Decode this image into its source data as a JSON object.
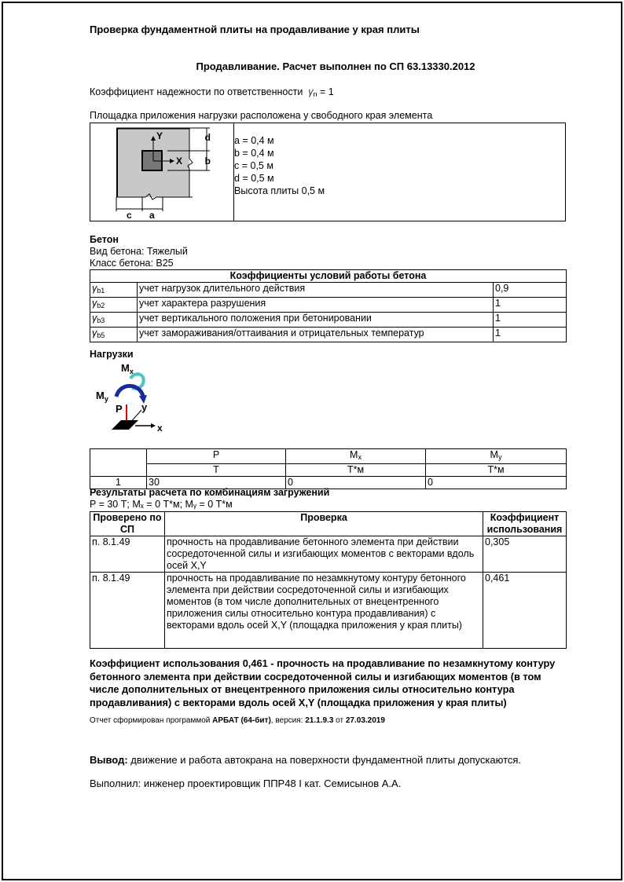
{
  "title": "Проверка фундаментной плиты на продавливание у края плиты",
  "subtitle": "Продавливание. Расчет выполнен по СП 63.13330.2012",
  "reliability": {
    "label": "Коэффициент надежности по ответственности",
    "symbol": "γ",
    "sub": "n",
    "value": "= 1"
  },
  "placement": "Площадка приложения нагрузки расположена у свободного края элемента",
  "diagram": {
    "labels": {
      "y": "Y",
      "x": "X",
      "a": "a",
      "b": "b",
      "c": "c",
      "d": "d"
    },
    "params": [
      "a = 0,4 м",
      "b = 0,4 м",
      "c = 0,5 м",
      "d = 0,5 м",
      "Высота плиты 0,5 м"
    ]
  },
  "concrete": {
    "heading": "Бетон",
    "type": "Вид бетона: Тяжелый",
    "class": "Класс бетона: B25",
    "table_title": "Коэффициенты условий работы бетона",
    "rows": [
      {
        "sym": "γ",
        "sub": "b1",
        "desc": "учет нагрузок длительного действия",
        "val": "0,9"
      },
      {
        "sym": "γ",
        "sub": "b2",
        "desc": "учет характера разрушения",
        "val": "1"
      },
      {
        "sym": "γ",
        "sub": "b3",
        "desc": "учет вертикального положения при бетонировании",
        "val": "1"
      },
      {
        "sym": "γ",
        "sub": "b5",
        "desc": "учет замораживания/оттаивания и отрицательных температур",
        "val": "1"
      }
    ]
  },
  "loads": {
    "heading": "Нагрузки",
    "figure": {
      "mx": "M",
      "mx_sub": "x",
      "my": "M",
      "my_sub": "y",
      "p": "P",
      "y": "y",
      "x": "x"
    },
    "headers": [
      "P",
      "M",
      "M"
    ],
    "header_subs": [
      "",
      "x",
      "y"
    ],
    "units": [
      "Т",
      "Т*м",
      "Т*м"
    ],
    "rows": [
      {
        "n": "1",
        "p": "30",
        "mx": "0",
        "my": "0"
      }
    ]
  },
  "results": {
    "heading": "Результаты расчета по комбинациям загружений",
    "combo": "P = 30 Т; Mₓ = 0 Т*м; Mᵧ = 0 Т*м",
    "headers": [
      "Проверено по СП",
      "Проверка",
      "Коэффициент использования"
    ],
    "rows": [
      {
        "sp": "п. 8.1.49",
        "check": "прочность на продавливание бетонного элемента при действии сосредоточенной силы и изгибающих моментов с векторами вдоль осей X,Y",
        "k": "0,305"
      },
      {
        "sp": "п. 8.1.49",
        "check": "прочность на продавливание по незамкнутому контуру бетонного элемента при действии сосредоточенной силы и изгибающих моментов (в том числе дополнительных от внецентренного приложения силы относительно контура продавливания) с векторами вдоль осей X,Y (площадка приложения у края плиты)",
        "k": "0,461"
      }
    ]
  },
  "summary": "Коэффициент использования 0,461 - прочность на продавливание по незамкнутому контуру бетонного элемента при действии сосредоточенной силы и изгибающих моментов (в том числе дополнительных от внецентренного приложения силы относительно контура продавливания) с векторами вдоль осей X,Y (площадка приложения у края плиты)",
  "report": {
    "prefix": "Отчет сформирован программой ",
    "program": "АРБАТ (64-бит)",
    "mid": ", версия: ",
    "version": "21.1.9.3",
    "of": " от ",
    "date": "27.03.2019"
  },
  "conclusion": {
    "label": "Вывод:",
    "text": " движение и работа автокрана на поверхности фундаментной плиты допускаются."
  },
  "signature": "Выполнил: инженер проектировщик ППР48 I кат. Семисынов А.А."
}
